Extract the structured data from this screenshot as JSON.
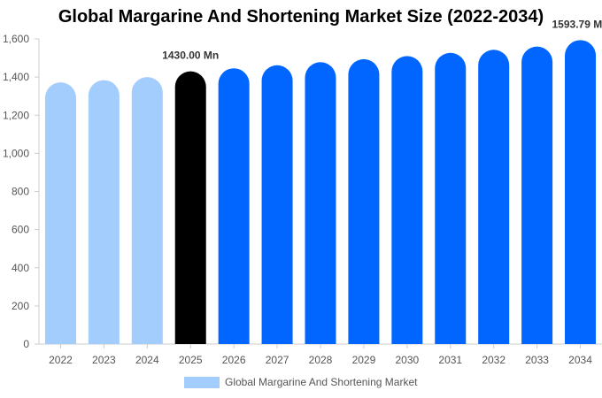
{
  "chart_data": {
    "type": "bar",
    "title": "Global Margarine And Shortening Market Size (2022-2034)",
    "categories": [
      "2022",
      "2023",
      "2024",
      "2025",
      "2026",
      "2027",
      "2028",
      "2029",
      "2030",
      "2031",
      "2032",
      "2033",
      "2034"
    ],
    "series": [
      {
        "name": "Global Margarine And Shortening Market",
        "values": [
          1372,
          1384,
          1400,
          1430,
          1446,
          1462,
          1478,
          1494,
          1510,
          1527,
          1543,
          1560,
          1593.79
        ]
      }
    ],
    "bar_colors": [
      "#a3cdfd",
      "#a3cdfd",
      "#a3cdfd",
      "#000000",
      "#0066ff",
      "#0066ff",
      "#0066ff",
      "#0066ff",
      "#0066ff",
      "#0066ff",
      "#0066ff",
      "#0066ff",
      "#0066ff"
    ],
    "data_labels": [
      {
        "category": "2025",
        "text": "1430.00 Mn"
      },
      {
        "category": "2034",
        "text": "1593.79 Mn"
      }
    ],
    "y_ticks": [
      "0",
      "200",
      "400",
      "600",
      "800",
      "1,000",
      "1,200",
      "1,400",
      "1,600"
    ],
    "ylim": [
      0,
      1600
    ],
    "xlabel": "",
    "ylabel": "",
    "grid": false,
    "legend_position": "bottom-center",
    "legend_color": "#a3cdfd"
  }
}
